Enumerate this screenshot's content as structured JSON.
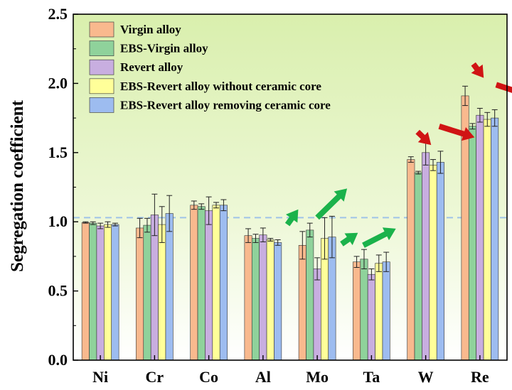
{
  "chart_data": {
    "type": "bar",
    "ylabel": "Segregation coefficient",
    "xlabel": "",
    "ylim": [
      0.0,
      2.5
    ],
    "yticks": [
      "0.0",
      "0.5",
      "1.0",
      "1.5",
      "2.0",
      "2.5"
    ],
    "categories": [
      "Ni",
      "Cr",
      "Co",
      "Al",
      "Mo",
      "Ta",
      "W",
      "Re"
    ],
    "legend_position": "top-left",
    "grid": false,
    "reference_line": 1.03,
    "series": [
      {
        "name": "Virgin alloy",
        "color": "#f9b98e",
        "values": [
          0.995,
          0.955,
          1.12,
          0.9,
          0.83,
          0.71,
          1.45,
          1.91
        ],
        "errors": [
          0.005,
          0.07,
          0.03,
          0.05,
          0.1,
          0.04,
          0.02,
          0.07
        ]
      },
      {
        "name": "EBS-Virgin alloy",
        "color": "#8fd29b",
        "values": [
          0.99,
          0.975,
          1.11,
          0.88,
          0.94,
          0.73,
          1.355,
          1.69
        ],
        "errors": [
          0.01,
          0.05,
          0.02,
          0.03,
          0.05,
          0.07,
          0.01,
          0.02
        ]
      },
      {
        "name": "Revert alloy",
        "color": "#c8aee0",
        "values": [
          0.97,
          1.05,
          1.08,
          0.905,
          0.66,
          0.62,
          1.5,
          1.77
        ],
        "errors": [
          0.02,
          0.15,
          0.1,
          0.05,
          0.08,
          0.04,
          0.09,
          0.05
        ]
      },
      {
        "name": "EBS-Revert alloy without ceramic core",
        "color": "#ffff99",
        "values": [
          0.98,
          0.98,
          1.12,
          0.87,
          0.88,
          0.7,
          1.41,
          1.74
        ],
        "errors": [
          0.02,
          0.13,
          0.02,
          0.01,
          0.15,
          0.06,
          0.04,
          0.05
        ]
      },
      {
        "name": "EBS-Revert alloy removing ceramic core",
        "color": "#9dbcf0",
        "values": [
          0.98,
          1.06,
          1.12,
          0.85,
          0.89,
          0.71,
          1.43,
          1.75
        ],
        "errors": [
          0.01,
          0.13,
          0.04,
          0.02,
          0.15,
          0.07,
          0.08,
          0.06
        ]
      }
    ],
    "annotations": [
      {
        "type": "arrow",
        "color": "#1bb24b",
        "near": "Mo",
        "from": [
          4.45,
          0.98
        ],
        "to": [
          4.65,
          1.09
        ]
      },
      {
        "type": "arrow",
        "color": "#1bb24b",
        "near": "Mo",
        "from": [
          5.0,
          1.03
        ],
        "to": [
          5.55,
          1.24
        ]
      },
      {
        "type": "arrow",
        "color": "#1bb24b",
        "near": "Ta",
        "from": [
          5.45,
          0.84
        ],
        "to": [
          5.75,
          0.92
        ]
      },
      {
        "type": "arrow",
        "color": "#1bb24b",
        "near": "Ta",
        "from": [
          5.85,
          0.83
        ],
        "to": [
          6.45,
          0.95
        ]
      },
      {
        "type": "arrow",
        "color": "#d01414",
        "near": "W",
        "from": [
          6.85,
          1.65
        ],
        "to": [
          7.1,
          1.555
        ]
      },
      {
        "type": "arrow",
        "color": "#d01414",
        "near": "W",
        "from": [
          7.25,
          1.69
        ],
        "to": [
          7.9,
          1.61
        ]
      },
      {
        "type": "arrow",
        "color": "#d01414",
        "near": "Re",
        "from": [
          7.88,
          2.14
        ],
        "to": [
          8.07,
          2.04
        ]
      },
      {
        "type": "arrow",
        "color": "#d01414",
        "near": "Re",
        "from": [
          8.3,
          1.99
        ],
        "to": [
          9.0,
          1.9
        ]
      }
    ]
  }
}
